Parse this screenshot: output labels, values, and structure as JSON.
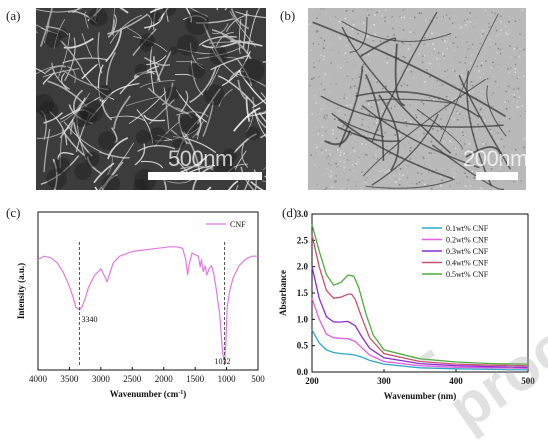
{
  "panels": {
    "a": {
      "label": "(a)",
      "scale_text": "500nm"
    },
    "b": {
      "label": "(b)",
      "scale_text": "200nm"
    },
    "c": {
      "label": "(c)"
    },
    "d": {
      "label": "(d)"
    }
  },
  "watermark": "-proof",
  "colors": {
    "ftir": "#e07be0",
    "axis": "#111111"
  },
  "chart_data": [
    {
      "type": "line",
      "panel": "c",
      "xlabel": "Wavenumber (cm",
      "xlabel_sup": "-1",
      "xlabel_end": ")",
      "ylabel": "Intensity (a.u.)",
      "xlim": [
        4000,
        500
      ],
      "x_reversed": true,
      "xticks": [
        4000,
        3500,
        3000,
        2500,
        2000,
        1500,
        1000,
        500
      ],
      "ylim": [
        0,
        1
      ],
      "y_tick_labels": false,
      "legend": "top-right",
      "series": [
        {
          "name": "CNF",
          "color": "#e07be0",
          "points": [
            [
              4000,
              0.7
            ],
            [
              3900,
              0.72
            ],
            [
              3800,
              0.71
            ],
            [
              3700,
              0.68
            ],
            [
              3600,
              0.62
            ],
            [
              3500,
              0.53
            ],
            [
              3450,
              0.47
            ],
            [
              3400,
              0.4
            ],
            [
              3340,
              0.38
            ],
            [
              3300,
              0.4
            ],
            [
              3250,
              0.45
            ],
            [
              3200,
              0.52
            ],
            [
              3100,
              0.6
            ],
            [
              3000,
              0.64
            ],
            [
              2950,
              0.6
            ],
            [
              2900,
              0.56
            ],
            [
              2850,
              0.62
            ],
            [
              2800,
              0.68
            ],
            [
              2700,
              0.72
            ],
            [
              2500,
              0.75
            ],
            [
              2300,
              0.76
            ],
            [
              2100,
              0.77
            ],
            [
              1900,
              0.78
            ],
            [
              1800,
              0.78
            ],
            [
              1700,
              0.77
            ],
            [
              1650,
              0.7
            ],
            [
              1620,
              0.6
            ],
            [
              1600,
              0.66
            ],
            [
              1550,
              0.74
            ],
            [
              1450,
              0.72
            ],
            [
              1420,
              0.65
            ],
            [
              1400,
              0.7
            ],
            [
              1370,
              0.62
            ],
            [
              1340,
              0.66
            ],
            [
              1315,
              0.6
            ],
            [
              1280,
              0.64
            ],
            [
              1240,
              0.66
            ],
            [
              1200,
              0.6
            ],
            [
              1160,
              0.5
            ],
            [
              1110,
              0.35
            ],
            [
              1080,
              0.2
            ],
            [
              1060,
              0.1
            ],
            [
              1032,
              0.05
            ],
            [
              1010,
              0.18
            ],
            [
              990,
              0.4
            ],
            [
              950,
              0.5
            ],
            [
              900,
              0.58
            ],
            [
              850,
              0.62
            ],
            [
              800,
              0.66
            ],
            [
              700,
              0.7
            ],
            [
              600,
              0.72
            ],
            [
              500,
              0.72
            ]
          ]
        }
      ],
      "annotations": [
        {
          "text": "3340",
          "x": 3340
        },
        {
          "text": "1032",
          "x": 1032
        }
      ]
    },
    {
      "type": "line",
      "panel": "d",
      "xlabel": "Wavenumber (nm)",
      "ylabel": "Absorbance",
      "xlim": [
        200,
        500
      ],
      "xticks": [
        200,
        300,
        400,
        500
      ],
      "ylim": [
        0,
        3.0
      ],
      "yticks": [
        "0.0",
        "0.5",
        "1.0",
        "1.5",
        "2.0",
        "2.5",
        "3.0"
      ],
      "legend": "top-right",
      "series": [
        {
          "name": "0.1wt% CNF",
          "color": "#2ea7c9",
          "points": [
            [
              200,
              0.8
            ],
            [
              210,
              0.55
            ],
            [
              220,
              0.42
            ],
            [
              230,
              0.37
            ],
            [
              240,
              0.35
            ],
            [
              250,
              0.34
            ],
            [
              260,
              0.32
            ],
            [
              270,
              0.28
            ],
            [
              280,
              0.22
            ],
            [
              300,
              0.15
            ],
            [
              350,
              0.08
            ],
            [
              400,
              0.06
            ],
            [
              450,
              0.05
            ],
            [
              500,
              0.04
            ]
          ]
        },
        {
          "name": "0.2wt% CNF",
          "color": "#e35fe3",
          "points": [
            [
              200,
              1.4
            ],
            [
              210,
              1.0
            ],
            [
              220,
              0.72
            ],
            [
              230,
              0.65
            ],
            [
              240,
              0.64
            ],
            [
              250,
              0.63
            ],
            [
              260,
              0.58
            ],
            [
              270,
              0.45
            ],
            [
              280,
              0.32
            ],
            [
              300,
              0.2
            ],
            [
              350,
              0.12
            ],
            [
              400,
              0.09
            ],
            [
              450,
              0.08
            ],
            [
              500,
              0.07
            ]
          ]
        },
        {
          "name": "0.3wt% CNF",
          "color": "#8b2bd6",
          "points": [
            [
              200,
              2.0
            ],
            [
              210,
              1.4
            ],
            [
              220,
              1.05
            ],
            [
              230,
              0.95
            ],
            [
              240,
              0.95
            ],
            [
              250,
              0.96
            ],
            [
              260,
              0.88
            ],
            [
              270,
              0.65
            ],
            [
              280,
              0.45
            ],
            [
              300,
              0.27
            ],
            [
              350,
              0.16
            ],
            [
              400,
              0.12
            ],
            [
              450,
              0.1
            ],
            [
              500,
              0.09
            ]
          ]
        },
        {
          "name": "0.4wt% CNF",
          "color": "#c8506e",
          "points": [
            [
              200,
              2.6
            ],
            [
              210,
              2.0
            ],
            [
              220,
              1.55
            ],
            [
              230,
              1.4
            ],
            [
              240,
              1.42
            ],
            [
              250,
              1.48
            ],
            [
              255,
              1.48
            ],
            [
              260,
              1.38
            ],
            [
              270,
              1.0
            ],
            [
              280,
              0.65
            ],
            [
              300,
              0.35
            ],
            [
              350,
              0.2
            ],
            [
              400,
              0.15
            ],
            [
              450,
              0.13
            ],
            [
              500,
              0.12
            ]
          ]
        },
        {
          "name": "0.5wt% CNF",
          "color": "#4cae3c",
          "points": [
            [
              200,
              2.8
            ],
            [
              210,
              2.3
            ],
            [
              220,
              1.85
            ],
            [
              230,
              1.65
            ],
            [
              240,
              1.7
            ],
            [
              250,
              1.84
            ],
            [
              258,
              1.82
            ],
            [
              265,
              1.6
            ],
            [
              275,
              1.1
            ],
            [
              285,
              0.7
            ],
            [
              300,
              0.42
            ],
            [
              350,
              0.25
            ],
            [
              400,
              0.19
            ],
            [
              450,
              0.16
            ],
            [
              500,
              0.15
            ]
          ]
        }
      ]
    }
  ]
}
